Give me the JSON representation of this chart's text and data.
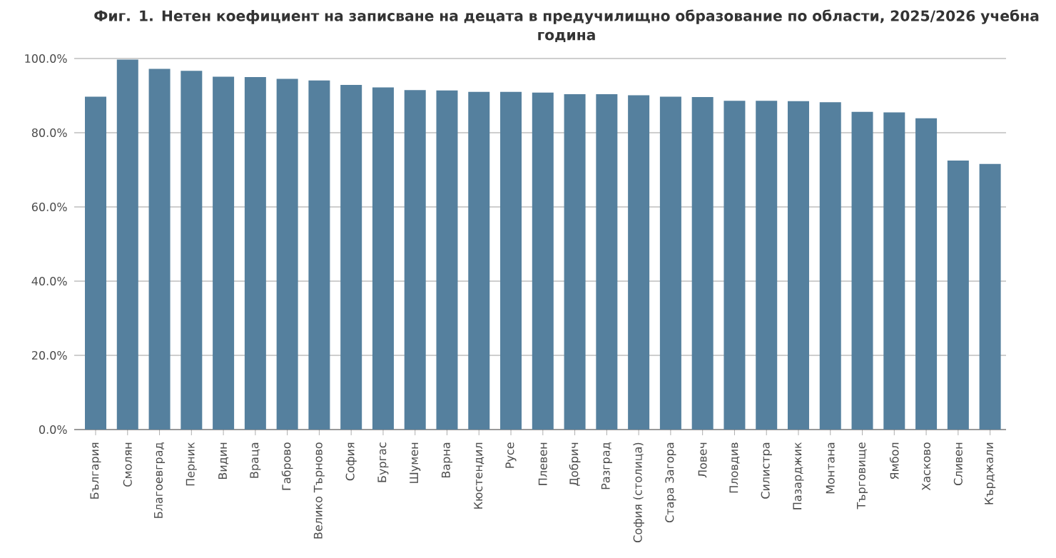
{
  "chart_data": {
    "type": "bar",
    "title": "Фиг. 1. Нетен коефициент на записване на децата в предучилищно образование по области, 2025/2026 учебна година",
    "categories": [
      "България",
      "Смолян",
      "Благоевград",
      "Перник",
      "Видин",
      "Враца",
      "Габрово",
      "Велико Търново",
      "София",
      "Бургас",
      "Шумен",
      "Варна",
      "Кюстендил",
      "Русе",
      "Плевен",
      "Добрич",
      "Разград",
      "София (столица)",
      "Стара Загора",
      "Ловеч",
      "Пловдив",
      "Силистра",
      "Пазарджик",
      "Монтана",
      "Търговище",
      "Ямбол",
      "Хасково",
      "Сливен",
      "Кърджали"
    ],
    "values": [
      89.7,
      99.7,
      97.2,
      96.7,
      95.1,
      95.0,
      94.5,
      94.1,
      92.9,
      92.2,
      91.5,
      91.4,
      91.0,
      91.0,
      90.8,
      90.4,
      90.4,
      90.1,
      89.7,
      89.6,
      88.6,
      88.6,
      88.5,
      88.2,
      85.6,
      85.5,
      83.9,
      72.5,
      71.6
    ],
    "color": "#55809e",
    "ylim": [
      0,
      100
    ],
    "yticks": [
      {
        "value": 0,
        "label": "0.0%"
      },
      {
        "value": 20,
        "label": "20.0%"
      },
      {
        "value": 40,
        "label": "40.0%"
      },
      {
        "value": 60,
        "label": "60.0%"
      },
      {
        "value": 80,
        "label": "80.0%"
      },
      {
        "value": 100,
        "label": "100.0%"
      }
    ],
    "grid": "y"
  }
}
